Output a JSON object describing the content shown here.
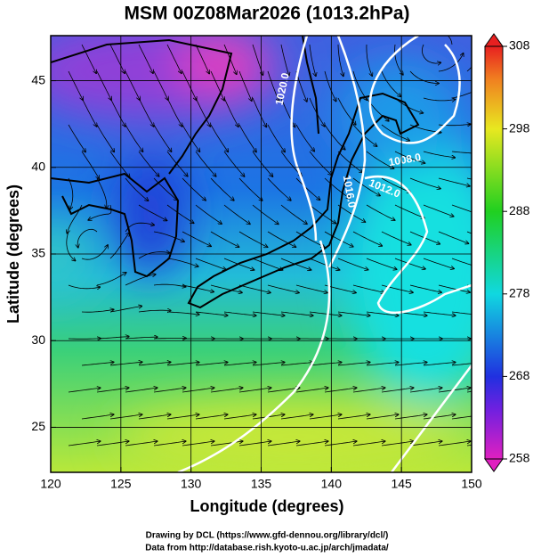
{
  "chart_data": {
    "type": "map",
    "title": "MSM 00Z08Mar2026 (1013.2hPa)",
    "x_label": "Longitude (degrees)",
    "y_label": "Latitude  (degrees)",
    "xlim": [
      120,
      150
    ],
    "ylim": [
      22.4,
      47.6
    ],
    "xticks": [
      120,
      125,
      130,
      135,
      140,
      145,
      150
    ],
    "yticks": [
      25,
      30,
      35,
      40,
      45
    ],
    "grid": true,
    "colorbar": {
      "lim": [
        258,
        308
      ],
      "ticks": [
        258,
        268,
        278,
        288,
        298,
        308
      ]
    },
    "contour_labels": [
      "1020.0",
      "1016.0",
      "1008.0",
      "1012.0"
    ],
    "credits": [
      "Drawing by DCL (https://www.gfd-dennou.org/library/dcl/)",
      "Data from http://database.rish.kyoto-u.ac.jp/arch/jmadata/"
    ]
  }
}
